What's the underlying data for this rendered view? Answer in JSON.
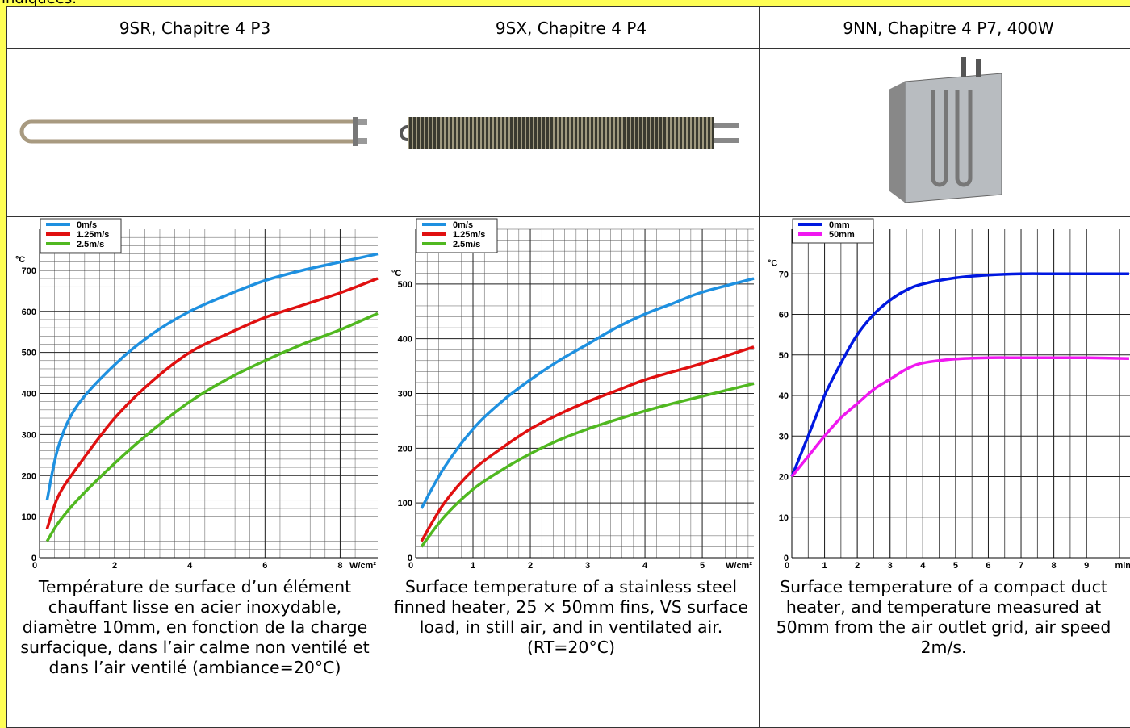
{
  "top_text": "indiquées.",
  "table": {
    "headers": [
      "9SR, Chapitre 4 P3",
      "9SX, Chapitre 4 P4",
      "9NN, Chapitre 4 P7, 400W"
    ],
    "captions": [
      "Température de surface d’un élément chauffant lisse en acier inoxydable, diamètre 10mm, en fonction de la charge surfacique, dans l’air calme non ventilé et dans l’air ventilé (ambiance=20°C)",
      "Surface temperature of a stainless steel finned heater, 25 × 50mm fins, VS surface load, in still air, and in ventilated air.(RT=20°C)",
      "Surface temperature of a compact duct heater, and temperature measured at 50mm from the air outlet grid, air speed 2m/s."
    ]
  },
  "chart_data": [
    {
      "type": "line",
      "y_label": "°C",
      "x_label": "W/cm²",
      "xlim": [
        0,
        9
      ],
      "ylim": [
        0,
        800
      ],
      "xticks": [
        0,
        2,
        4,
        6,
        8
      ],
      "yticks": [
        0,
        100,
        200,
        300,
        400,
        500,
        600,
        700
      ],
      "grid": true,
      "minor_grid": true,
      "x": [
        0.2,
        0.5,
        1,
        2,
        3,
        4,
        5,
        6,
        7,
        8,
        9
      ],
      "series": [
        {
          "name": "0m/s",
          "color": "#1e90e0",
          "values": [
            140,
            270,
            370,
            470,
            545,
            600,
            640,
            675,
            700,
            720,
            740
          ]
        },
        {
          "name": "1.25m/s",
          "color": "#e01010",
          "values": [
            70,
            150,
            220,
            340,
            430,
            500,
            545,
            585,
            615,
            645,
            680
          ]
        },
        {
          "name": "2.5m/s",
          "color": "#50b820",
          "values": [
            40,
            85,
            140,
            230,
            310,
            380,
            435,
            480,
            520,
            555,
            595
          ]
        }
      ]
    },
    {
      "type": "line",
      "y_label": "°C",
      "x_label": "W/cm²",
      "xlim": [
        0,
        5.9
      ],
      "ylim": [
        0,
        600
      ],
      "xticks": [
        0,
        1,
        2,
        3,
        4,
        5
      ],
      "yticks": [
        0,
        100,
        200,
        300,
        400,
        500
      ],
      "grid": true,
      "minor_grid": true,
      "x": [
        0.1,
        0.5,
        1,
        1.5,
        2,
        2.5,
        3,
        3.5,
        4,
        4.5,
        5,
        5.9
      ],
      "series": [
        {
          "name": "0m/s",
          "color": "#1e90e0",
          "values": [
            90,
            165,
            235,
            285,
            325,
            360,
            390,
            420,
            445,
            465,
            485,
            510
          ]
        },
        {
          "name": "1.25m/s",
          "color": "#e01010",
          "values": [
            30,
            100,
            160,
            200,
            235,
            262,
            285,
            305,
            325,
            340,
            355,
            385
          ]
        },
        {
          "name": "2.5m/s",
          "color": "#50b820",
          "values": [
            20,
            75,
            125,
            160,
            190,
            215,
            235,
            252,
            268,
            282,
            295,
            318
          ]
        }
      ]
    },
    {
      "type": "line",
      "y_label": "°C",
      "x_label": "min",
      "xlim": [
        0,
        10.4
      ],
      "ylim": [
        0,
        81
      ],
      "xticks": [
        0,
        1,
        2,
        3,
        4,
        5,
        6,
        7,
        8,
        9
      ],
      "yticks": [
        0,
        10,
        20,
        30,
        40,
        50,
        60,
        70
      ],
      "grid": true,
      "minor_grid": false,
      "x": [
        0,
        0.5,
        1,
        1.5,
        2,
        2.5,
        3,
        3.5,
        4,
        5,
        6,
        7,
        8,
        9,
        10.3
      ],
      "series": [
        {
          "name": "0mm",
          "color": "#0018e0",
          "values": [
            20,
            30,
            40,
            48,
            55,
            60,
            63.5,
            66,
            67.5,
            69,
            69.7,
            70,
            70,
            70,
            70
          ]
        },
        {
          "name": "50mm",
          "color": "#f018f0",
          "values": [
            20,
            25,
            30,
            34.5,
            38,
            41.5,
            44,
            46.5,
            48,
            49,
            49.3,
            49.3,
            49.3,
            49.3,
            49.1
          ]
        }
      ]
    }
  ]
}
